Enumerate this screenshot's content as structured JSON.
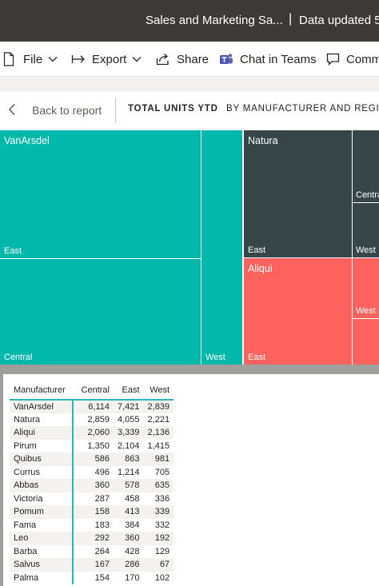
{
  "window": {
    "title": "Sales and Marketing Sa...",
    "separator": "|",
    "data_updated": "Data updated 5"
  },
  "actions": {
    "file": "File",
    "export": "Export",
    "share": "Share",
    "chat": "Chat in Teams",
    "comment": "Comm"
  },
  "nav": {
    "back": "Back to report",
    "tab_active": "TOTAL UNITS YTD",
    "tab_secondary": "BY MANUFACTURER AND REGION"
  },
  "colors": {
    "vanarsdel": "#01b8aa",
    "natura": "#374649",
    "aliqui": "#fd625e",
    "accent": "#2bb5b8"
  },
  "treemap": {
    "vanarsdel": {
      "name": "VanArsdel",
      "east": "East",
      "central": "Central",
      "west": "West"
    },
    "natura": {
      "name": "Natura",
      "east": "East",
      "central": "Centra",
      "west": "West"
    },
    "aliqui": {
      "name": "Aliqui",
      "east": "East",
      "west": "West"
    }
  },
  "table": {
    "headers": [
      "Manufacturer",
      "Central",
      "East",
      "West"
    ],
    "rows": [
      [
        "VanArsdel",
        "6,114",
        "7,421",
        "2,839"
      ],
      [
        "Natura",
        "2,859",
        "4,055",
        "2,221"
      ],
      [
        "Aliqui",
        "2,060",
        "3,339",
        "2,136"
      ],
      [
        "Pirum",
        "1,350",
        "2,104",
        "1,415"
      ],
      [
        "Quibus",
        "586",
        "863",
        "981"
      ],
      [
        "Currus",
        "496",
        "1,214",
        "705"
      ],
      [
        "Abbas",
        "360",
        "578",
        "635"
      ],
      [
        "Victoria",
        "287",
        "458",
        "336"
      ],
      [
        "Pomum",
        "158",
        "413",
        "339"
      ],
      [
        "Fama",
        "183",
        "384",
        "332"
      ],
      [
        "Leo",
        "292",
        "360",
        "192"
      ],
      [
        "Barba",
        "264",
        "428",
        "129"
      ],
      [
        "Salvus",
        "167",
        "286",
        "67"
      ],
      [
        "Palma",
        "154",
        "170",
        "102"
      ]
    ]
  }
}
